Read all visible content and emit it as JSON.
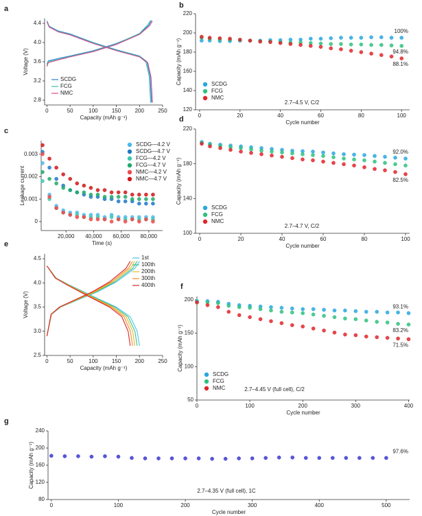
{
  "chart_data": [
    {
      "type": "line",
      "panel": "a",
      "xlabel": "Capacity (mAh g⁻¹)",
      "ylabel": "Voltage (V)",
      "xlim": [
        -5,
        250
      ],
      "ylim": [
        2.7,
        4.5
      ],
      "xticks": [
        0,
        50,
        100,
        150,
        200,
        250
      ],
      "yticks": [
        2.8,
        3.2,
        3.6,
        {
          "value": 4.0,
          "label": "4.0"
        },
        4.4
      ],
      "legend": "lower left",
      "series": [
        {
          "name": "SCDG",
          "color": "#2a7fd4",
          "x": [
            0,
            3,
            25,
            50,
            100,
            150,
            200,
            220,
            226,
            null,
            0,
            5,
            25,
            50,
            100,
            150,
            200,
            216,
            223,
            226
          ],
          "values": [
            3.55,
            3.62,
            3.67,
            3.72,
            3.83,
            3.98,
            4.18,
            4.36,
            4.46,
            null,
            4.45,
            4.34,
            4.24,
            4.18,
            4.0,
            3.85,
            3.72,
            3.6,
            3.3,
            2.75
          ]
        },
        {
          "name": "FCG",
          "color": "#34c1a6",
          "x": [
            0,
            3,
            25,
            50,
            100,
            150,
            200,
            218,
            224,
            null,
            0,
            5,
            25,
            50,
            100,
            150,
            200,
            214,
            221,
            224
          ],
          "values": [
            3.52,
            3.6,
            3.65,
            3.71,
            3.82,
            3.97,
            4.19,
            4.37,
            4.46,
            null,
            4.44,
            4.33,
            4.23,
            4.17,
            3.99,
            3.84,
            3.71,
            3.59,
            3.3,
            2.75
          ]
        },
        {
          "name": "NMC",
          "color": "#d94a8c",
          "x": [
            0,
            3,
            25,
            50,
            100,
            150,
            200,
            222,
            228,
            null,
            0,
            5,
            25,
            50,
            100,
            150,
            200,
            218,
            225,
            228
          ],
          "values": [
            3.5,
            3.58,
            3.64,
            3.7,
            3.81,
            3.96,
            4.17,
            4.35,
            4.45,
            null,
            4.43,
            4.32,
            4.22,
            4.16,
            3.98,
            3.83,
            3.7,
            3.58,
            3.28,
            2.75
          ]
        }
      ]
    },
    {
      "type": "scatter",
      "panel": "b",
      "xlabel": "Cycle number",
      "ylabel": "Capacity (mAh g⁻¹)",
      "xlim": [
        -2,
        104
      ],
      "ylim": [
        120,
        220
      ],
      "xticks": [
        0,
        20,
        40,
        60,
        80,
        100
      ],
      "yticks": [
        120,
        140,
        160,
        180,
        200,
        220
      ],
      "legend": "lower left",
      "note": "2.7–4.5 V, C/2",
      "x": [
        1,
        5,
        10,
        15,
        20,
        25,
        30,
        35,
        40,
        45,
        50,
        55,
        60,
        65,
        70,
        75,
        80,
        85,
        90,
        95,
        100
      ],
      "series": [
        {
          "name": "SCDG",
          "color": "#2aa7e0",
          "end_label": "100%",
          "values": [
            192,
            192,
            191.5,
            191.5,
            192,
            192,
            192,
            192.5,
            192.5,
            193,
            193,
            194,
            194,
            194.5,
            195,
            195,
            195,
            195.5,
            195.5,
            195,
            195
          ]
        },
        {
          "name": "FCG",
          "color": "#2ec27e",
          "end_label": "94.8%",
          "values": [
            195,
            194,
            193.5,
            193,
            192.5,
            192,
            191.5,
            191,
            190.5,
            190,
            190,
            189.5,
            189,
            188.5,
            188.5,
            188,
            188,
            187.5,
            187.5,
            187,
            186.5
          ]
        },
        {
          "name": "NMC",
          "color": "#e0262b",
          "end_label": "88.1%",
          "values": [
            196,
            195,
            194.5,
            194,
            193,
            192,
            191,
            190.5,
            189.5,
            188.5,
            187.5,
            186.5,
            185.5,
            184,
            183,
            181.5,
            180,
            178.5,
            177,
            175.5,
            173.5
          ]
        }
      ]
    },
    {
      "type": "scatter",
      "panel": "c",
      "xlabel": "Time (s)",
      "ylabel": "Leakage current",
      "xlim": [
        2000,
        90000
      ],
      "ylim": [
        -0.0004,
        0.0036
      ],
      "xticks": [
        {
          "value": 20000,
          "label": "20,000"
        },
        {
          "value": 40000,
          "label": "40,000"
        },
        {
          "value": 60000,
          "label": "60,000"
        },
        {
          "value": 80000,
          "label": "80,000"
        }
      ],
      "yticks": [
        0,
        0.001,
        0.002,
        0.003
      ],
      "legend": "upper right",
      "x": [
        3000,
        8000,
        13000,
        18000,
        23000,
        28000,
        33000,
        38000,
        43000,
        48000,
        53000,
        58000,
        63000,
        68000,
        73000,
        78000,
        83000
      ],
      "series": [
        {
          "name": "SCDG—4.2 V",
          "color": "#4cb8ea",
          "values": [
            0.0026,
            0.0012,
            0.0007,
            0.0005,
            0.0004,
            0.0004,
            0.0003,
            0.0003,
            0.0003,
            0.0002,
            0.0003,
            0.0002,
            0.0002,
            0.0002,
            0.0002,
            0.0002,
            0.0002
          ]
        },
        {
          "name": "SCDG—4.7 V",
          "color": "#1f78c8",
          "values": [
            0.0031,
            0.0024,
            0.0019,
            0.0016,
            0.0014,
            0.0013,
            0.0012,
            0.0011,
            0.0011,
            0.001,
            0.001,
            0.0009,
            0.0009,
            0.0009,
            0.0008,
            0.0008,
            0.0008
          ]
        },
        {
          "name": "FCG—4.2 V",
          "color": "#3cc8b0",
          "values": [
            0.0018,
            0.001,
            0.0006,
            0.0004,
            0.0003,
            0.0003,
            0.0002,
            0.0002,
            0.0002,
            0.0001,
            0.0002,
            0.0001,
            0.0001,
            0.0001,
            0.0001,
            0.0001,
            0.0001
          ]
        },
        {
          "name": "FCG—4.7 V",
          "color": "#1faa6a",
          "values": [
            0.0022,
            0.0019,
            0.0017,
            0.0015,
            0.0014,
            0.0013,
            0.0013,
            0.0012,
            0.0012,
            0.0011,
            0.0011,
            0.0011,
            0.0011,
            0.001,
            0.001,
            0.001,
            0.001
          ]
        },
        {
          "name": "NMC—4.2 V",
          "color": "#f04848",
          "values": [
            0.003,
            0.0011,
            0.0006,
            0.0004,
            0.0003,
            0.0002,
            0.0002,
            0.0001,
            0.0001,
            0.0001,
            0,
            0.0001,
            0,
            0.0001,
            0,
            0.0001,
            0
          ]
        },
        {
          "name": "NMC—4.7 V",
          "color": "#d01818",
          "values": [
            0.0034,
            0.0028,
            0.0024,
            0.0021,
            0.0019,
            0.0017,
            0.0016,
            0.0015,
            0.0014,
            0.0014,
            0.0013,
            0.0013,
            0.0013,
            0.0012,
            0.0012,
            0.0012,
            0.0012
          ]
        }
      ]
    },
    {
      "type": "scatter",
      "panel": "d",
      "xlabel": "Cycle number",
      "ylabel": "Capacity (mAh g⁻¹)",
      "xlim": [
        -2,
        102
      ],
      "ylim": [
        100,
        220
      ],
      "xticks": [
        0,
        20,
        40,
        60,
        80,
        100
      ],
      "yticks": [
        100,
        140,
        180,
        220
      ],
      "legend": "lower left",
      "note": "2.7–4.7 V, C/2",
      "x": [
        1,
        5,
        10,
        15,
        20,
        25,
        30,
        35,
        40,
        45,
        50,
        55,
        60,
        65,
        70,
        75,
        80,
        85,
        90,
        95,
        100
      ],
      "series": [
        {
          "name": "SCDG",
          "color": "#2aa7e0",
          "end_label": "92.0%",
          "values": [
            205,
            203,
            202,
            201,
            200,
            199,
            198,
            197,
            196,
            195,
            194.5,
            194,
            193,
            192,
            191,
            190.5,
            190,
            189,
            188,
            187,
            186
          ]
        },
        {
          "name": "FCG",
          "color": "#2ec27e",
          "values": [
            204,
            202,
            200.5,
            199,
            198,
            196.5,
            195,
            194,
            193,
            192,
            191,
            190,
            189,
            187.5,
            186,
            185,
            184,
            182.5,
            181,
            179.5,
            178
          ]
        },
        {
          "name": "NMC",
          "color": "#e0262b",
          "end_label": "82.5%",
          "values": [
            203,
            200,
            198,
            196,
            194,
            192.5,
            191,
            189.5,
            188,
            186.5,
            185,
            184,
            182.5,
            181,
            179.5,
            178,
            176,
            174,
            172.5,
            170.5,
            168
          ]
        }
      ]
    },
    {
      "type": "line",
      "panel": "e",
      "xlabel": "Capacity (mAh g⁻¹)",
      "ylabel": "Voltage (V)",
      "xlim": [
        -5,
        250
      ],
      "ylim": [
        2.5,
        4.6
      ],
      "xticks": [
        0,
        50,
        100,
        150,
        200,
        250
      ],
      "yticks": [
        2.5,
        {
          "value": 3.0,
          "label": "3.0"
        },
        3.5,
        {
          "value": 4.0,
          "label": "4.0"
        },
        4.5
      ],
      "legend": "upper right",
      "series": [
        {
          "name": "1st",
          "color": "#4cc3ea",
          "x": [
            0,
            10,
            30,
            75,
            110,
            150,
            190,
            200,
            null,
            0,
            20,
            50,
            100,
            150,
            180,
            195,
            200
          ],
          "values": [
            2.9,
            3.35,
            3.5,
            3.68,
            3.82,
            4.02,
            4.3,
            4.45,
            null,
            4.35,
            4.1,
            3.95,
            3.72,
            3.5,
            3.3,
            3.0,
            2.7
          ]
        },
        {
          "name": "100th",
          "color": "#3cbf8c",
          "x": [
            0,
            9.8,
            29.3,
            73.1,
            107.3,
            146.3,
            185.3,
            195,
            null,
            0,
            19.5,
            48.8,
            97.5,
            146.3,
            175.5,
            190.1,
            195
          ],
          "values": [
            2.9,
            3.35,
            3.5,
            3.68,
            3.82,
            4.02,
            4.3,
            4.45,
            null,
            4.35,
            4.1,
            3.95,
            3.72,
            3.5,
            3.3,
            3.0,
            2.7
          ]
        },
        {
          "name": "200th",
          "color": "#e8b820",
          "x": [
            0,
            9.5,
            28.5,
            71.3,
            104.5,
            142.5,
            180.5,
            190,
            null,
            0,
            19,
            47.5,
            95,
            142.5,
            171,
            185.3,
            190
          ],
          "values": [
            2.9,
            3.35,
            3.5,
            3.68,
            3.82,
            4.02,
            4.3,
            4.45,
            null,
            4.35,
            4.1,
            3.95,
            3.72,
            3.5,
            3.3,
            3.0,
            2.7
          ]
        },
        {
          "name": "300th",
          "color": "#f08a30",
          "x": [
            0,
            9.3,
            27.8,
            69.4,
            101.8,
            138.8,
            175.8,
            185,
            null,
            0,
            18.5,
            46.3,
            92.5,
            138.8,
            166.5,
            180.4,
            185
          ],
          "values": [
            2.9,
            3.35,
            3.5,
            3.68,
            3.82,
            4.02,
            4.3,
            4.45,
            null,
            4.35,
            4.1,
            3.95,
            3.72,
            3.5,
            3.3,
            3.0,
            2.7
          ]
        },
        {
          "name": "400th",
          "color": "#d62728",
          "x": [
            0,
            9,
            27,
            67.5,
            99,
            135,
            171,
            180,
            null,
            0,
            18,
            45,
            90,
            135,
            162,
            175.5,
            180
          ],
          "values": [
            2.9,
            3.35,
            3.5,
            3.68,
            3.82,
            4.02,
            4.3,
            4.45,
            null,
            4.35,
            4.1,
            3.95,
            3.72,
            3.5,
            3.3,
            3.0,
            2.7
          ]
        }
      ]
    },
    {
      "type": "scatter",
      "panel": "f",
      "xlabel": "Cycle number",
      "ylabel": "Capacity (mAh g⁻¹)",
      "xlim": [
        0,
        402
      ],
      "ylim": [
        50,
        205
      ],
      "xticks": [
        0,
        100,
        200,
        300,
        400
      ],
      "yticks": [
        50,
        100,
        150,
        200
      ],
      "legend": "lower left",
      "note": "2.7–4.45 V (full cell), C/2",
      "x": [
        0,
        20,
        40,
        60,
        80,
        100,
        120,
        140,
        160,
        180,
        200,
        220,
        240,
        260,
        280,
        300,
        320,
        340,
        360,
        380,
        400
      ],
      "series": [
        {
          "name": "SCDG",
          "color": "#2aa7e0",
          "end_label": "93.1%",
          "values": [
            198,
            198,
            197,
            194,
            192,
            191,
            190,
            189,
            188,
            187,
            186,
            186,
            185,
            184,
            184,
            183,
            182,
            182,
            181,
            181,
            180
          ]
        },
        {
          "name": "FCG",
          "color": "#2ec27e",
          "end_label": "83.2%",
          "values": [
            197,
            196,
            195,
            191,
            189,
            188,
            186,
            184,
            182,
            181,
            180,
            178,
            176,
            174,
            172,
            171,
            169,
            167,
            166,
            164,
            163
          ]
        },
        {
          "name": "NMC",
          "color": "#e0262b",
          "end_label": "71.5%",
          "values": [
            196,
            192,
            189,
            182,
            177,
            174,
            171,
            168,
            165,
            162,
            160,
            157,
            154,
            151,
            148,
            147,
            145,
            144,
            143,
            142,
            141
          ]
        }
      ]
    },
    {
      "type": "scatter",
      "panel": "g",
      "xlabel": "Cycle number",
      "ylabel": "Capacity (mAh g⁻¹)",
      "xlim": [
        -5,
        535
      ],
      "ylim": [
        80,
        240
      ],
      "xticks": [
        0,
        100,
        200,
        300,
        400,
        500
      ],
      "yticks": [
        80,
        120,
        160,
        200,
        240
      ],
      "note": "2.7–4.35 V (full cell), 1C",
      "x": [
        0,
        20,
        40,
        60,
        80,
        100,
        120,
        140,
        160,
        180,
        200,
        220,
        240,
        260,
        280,
        300,
        320,
        340,
        360,
        380,
        400,
        420,
        440,
        460,
        480,
        500
      ],
      "series": [
        {
          "color": "#3a3ad0",
          "end_label": "97.6%",
          "values": [
            182,
            181,
            181,
            180,
            181,
            180,
            177,
            176,
            176,
            176,
            176,
            176,
            175,
            175,
            176,
            176,
            177,
            178,
            178,
            177,
            177,
            177,
            177,
            177,
            177,
            177
          ]
        }
      ]
    }
  ]
}
